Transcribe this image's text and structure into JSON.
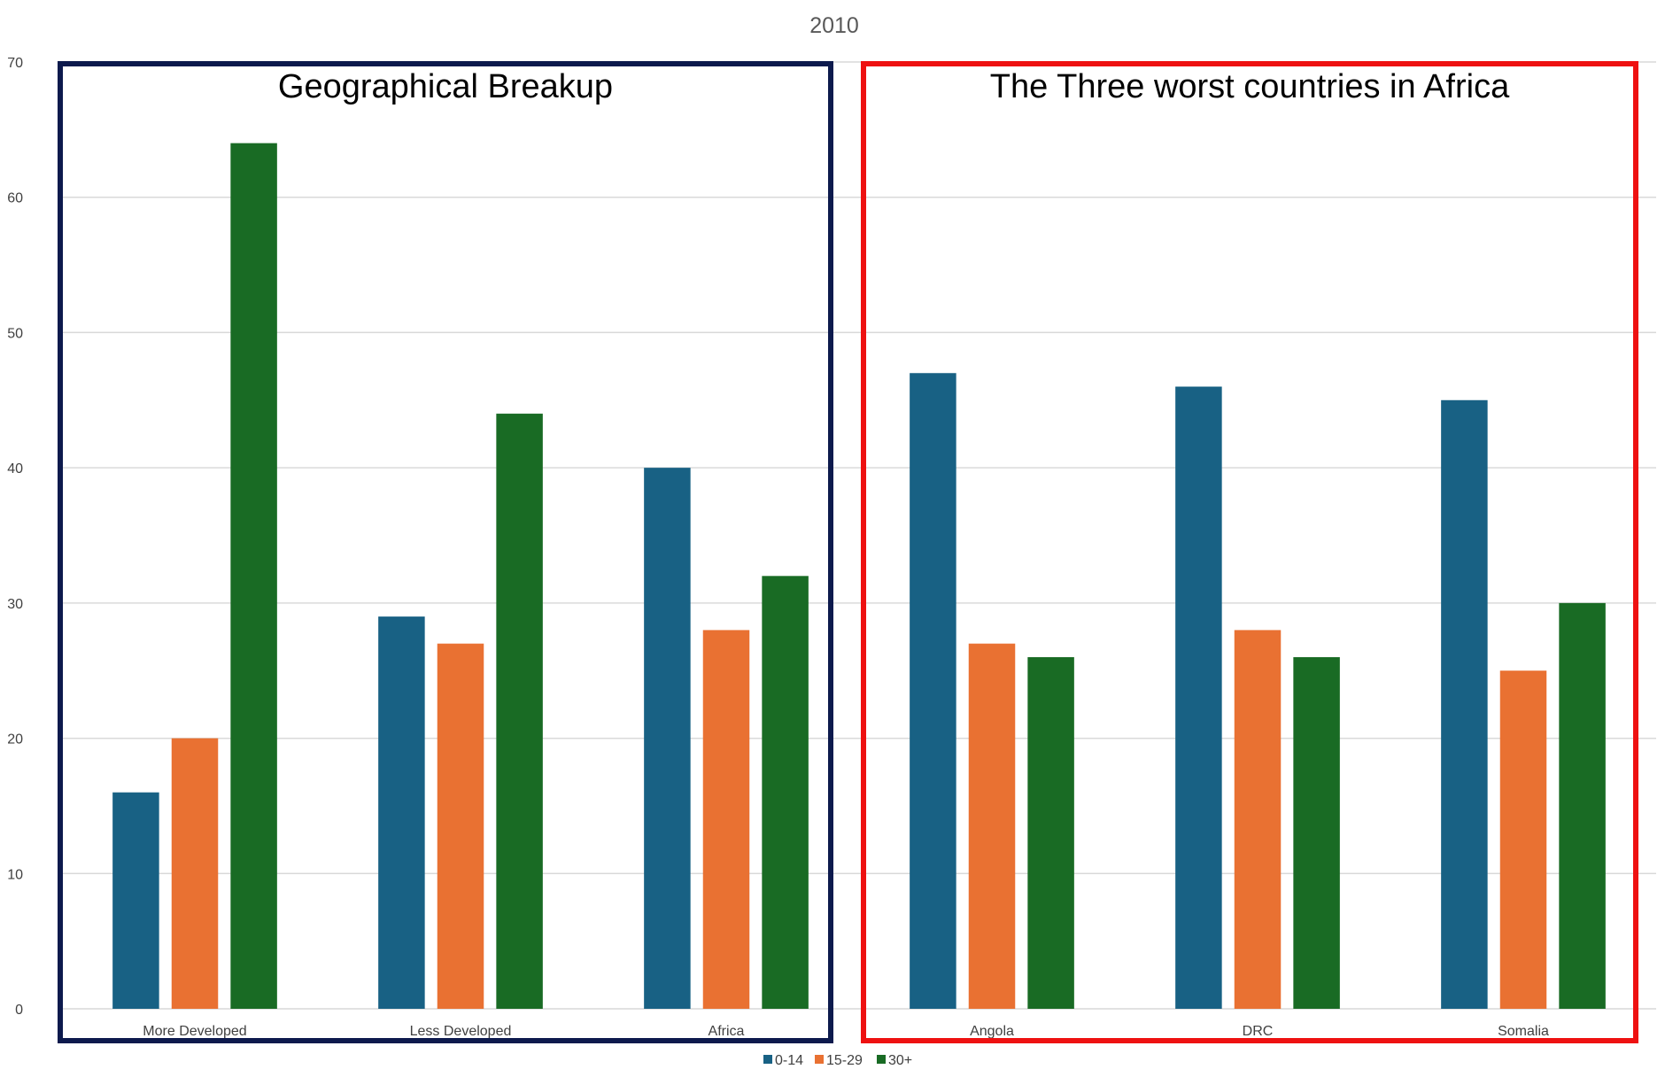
{
  "chart_data": {
    "type": "bar",
    "title": "2010",
    "xlabel": "",
    "ylabel": "",
    "ylim": [
      0,
      70
    ],
    "yticks": [
      0,
      10,
      20,
      30,
      40,
      50,
      60,
      70
    ],
    "grid": true,
    "legend_position": "bottom",
    "categories": [
      "More Developed",
      "Less Developed",
      "Africa",
      "Angola",
      "DRC",
      "Somalia"
    ],
    "series": [
      {
        "name": "0-14",
        "color": "#186184",
        "values": [
          16,
          29,
          40,
          47,
          46,
          45
        ]
      },
      {
        "name": "15-29",
        "color": "#E97132",
        "values": [
          20,
          27,
          28,
          27,
          28,
          25
        ]
      },
      {
        "name": "30+",
        "color": "#196B24",
        "values": [
          64,
          44,
          32,
          26,
          26,
          30
        ]
      }
    ],
    "annotations": [
      {
        "text": "Geographical Breakup",
        "border_color": "#0D1A4D",
        "categories": [
          "More Developed",
          "Less Developed",
          "Africa"
        ]
      },
      {
        "text": "The Three worst countries in Africa",
        "border_color": "#EE1111",
        "categories": [
          "Angola",
          "DRC",
          "Somalia"
        ]
      }
    ]
  }
}
